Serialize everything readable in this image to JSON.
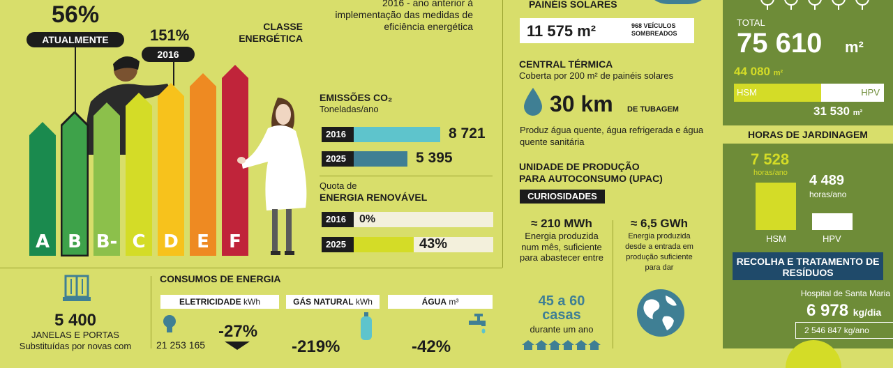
{
  "colors": {
    "background": "#d8de6b",
    "panel_green": "#6e8c38",
    "dark": "#1c1c1c",
    "teal": "#5ec4cc",
    "steel": "#3f7f94",
    "yellow_bar": "#d4dc27",
    "rating_A": "#1a8a4e",
    "rating_B": "#3ea24a",
    "rating_Bminus": "#8cc04b",
    "rating_C": "#d4dc27",
    "rating_D": "#f7c21c",
    "rating_E": "#ee8a22",
    "rating_F": "#c0243a"
  },
  "rating": {
    "current_pct": "56%",
    "current_label": "ATUALMENTE",
    "past_pct": "151%",
    "past_label": "2016",
    "note": "2016 - ano anterior à implementação das medidas de eficiência energética",
    "classe_title": "CLASSE ENERGÉTICA",
    "letters": [
      "A",
      "B",
      "B-",
      "C",
      "D",
      "E",
      "F"
    ]
  },
  "emissions": {
    "title": "EMISSÕES CO₂",
    "subtitle": "Toneladas/ano",
    "rows": [
      {
        "year": "2016",
        "value": "8 721",
        "amount": 8721
      },
      {
        "year": "2025",
        "value": "5 395",
        "amount": 5395
      }
    ]
  },
  "renewable": {
    "title_small": "Quota de",
    "title_big": "ENERGIA RENOVÁVEL",
    "rows": [
      {
        "year": "2016",
        "value": "0%",
        "fraction": 0
      },
      {
        "year": "2025",
        "value": "43%",
        "fraction": 0.43
      }
    ]
  },
  "windows": {
    "value": "5 400",
    "label": "JANELAS E PORTAS",
    "desc": "Substituídas por novas com"
  },
  "consumption": {
    "title": "CONSUMOS DE ENERGIA",
    "electricity": {
      "label": "ELETRICIDADE",
      "unit": "kWh",
      "value": "21 253 165",
      "change": "-27%"
    },
    "gas": {
      "label": "GÁS NATURAL",
      "unit": "kWh",
      "change": "-219%"
    },
    "water": {
      "label": "ÁGUA",
      "unit": "m³",
      "change": "-42%"
    }
  },
  "solar": {
    "title": "PAINÉIS SOLARES",
    "area": "11 575 m²",
    "equiv": "968 VEÍCULOS SOMBREADOS"
  },
  "thermal": {
    "title": "CENTRAL TÉRMICA",
    "subtitle": "Coberta por 200 m² de painéis solares",
    "pipe_value": "30 km",
    "pipe_label": "DE TUBAGEM",
    "desc": "Produz água quente, água refrigerada e água quente sanitária"
  },
  "upac": {
    "title_line1": "UNIDADE DE PRODUÇÃO",
    "title_line2": "PARA AUTOCONSUMO (UPAC)",
    "badge": "CURIOSIDADES",
    "left_value": "≈ 210 MWh",
    "left_desc": "Energia produzida num mês, suficiente para abastecer entre",
    "left_highlight": "45 a 60 casas",
    "left_tail": "durante um ano",
    "right_value": "≈ 6,5 GWh",
    "right_desc": "Energia produzida desde a entrada em produção suficiente para dar"
  },
  "green": {
    "total_label": "TOTAL",
    "total_value": "75 610",
    "total_unit": "m²",
    "hsm_value": "44 080",
    "hsm_unit": "m²",
    "hsm_label": "HSM",
    "hpv_label": "HPV",
    "hpv_value": "31 530",
    "hpv_unit": "m²",
    "hsm_fraction": 0.583
  },
  "gardening": {
    "title": "HORAS DE JARDINAGEM",
    "hsm_value": "7 528",
    "hsm_unit": "horas/ano",
    "hpv_value": "4 489",
    "hpv_unit": "horas/ano",
    "hsm_label": "HSM",
    "hpv_label": "HPV"
  },
  "waste": {
    "title": "RECOLHA E TRATAMENTO DE RESÍDUOS",
    "hospital": "Hospital de Santa Maria",
    "daily_value": "6 978",
    "daily_unit": "kg/dia",
    "yearly": "2 546 847 kg/ano"
  }
}
